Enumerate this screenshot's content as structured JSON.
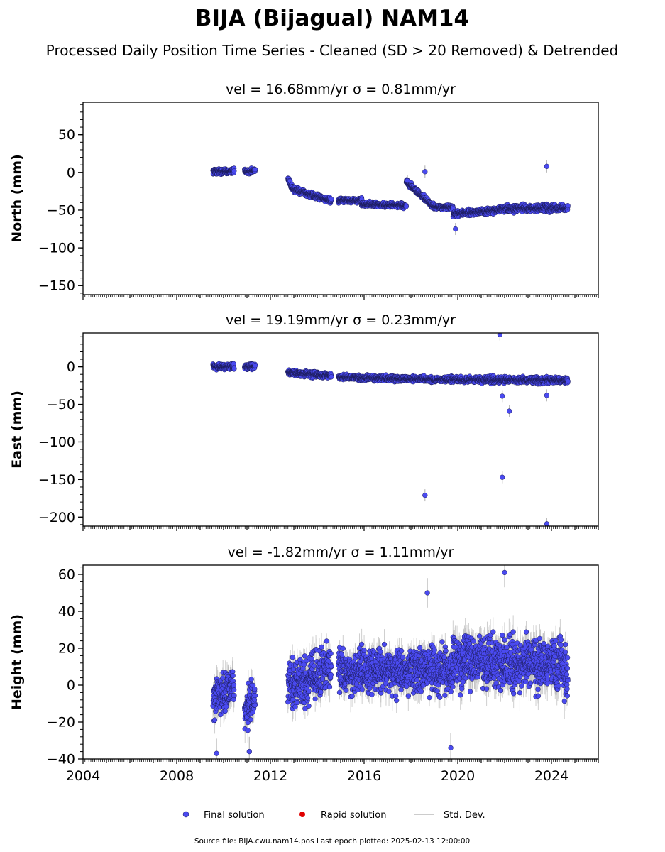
{
  "title": "BIJA (Bijagual) NAM14",
  "subtitle": "Processed Daily Position Time Series - Cleaned (SD > 20 Removed) & Detrended",
  "legend": {
    "placement": "bottom-center",
    "items": [
      {
        "label": "Final solution",
        "color": "#4a4af0",
        "marker": "circle"
      },
      {
        "label": "Rapid solution",
        "color": "#e00000",
        "marker": "circle"
      },
      {
        "label": "Std. Dev.",
        "color": "#bbbbbb",
        "marker": "line"
      }
    ]
  },
  "footer": "Source file: BIJA.cwu.nam14.pos  Last epoch plotted: 2025-02-13 12:00:00",
  "colors": {
    "final": "#4a4af0",
    "final_edge": "#1a1a55",
    "rapid": "#e00000",
    "stddev": "#bbbbbb"
  },
  "chart_data": [
    {
      "type": "scatter",
      "title": "vel = 16.68mm/yr   σ = 0.81mm/yr",
      "ylabel": "North (mm)",
      "xlim": [
        2004.0,
        2026.0
      ],
      "ylim": [
        -162,
        93
      ],
      "yticks": [
        50,
        0,
        -50,
        -100,
        -150
      ],
      "ytick_labels": [
        "50",
        "0",
        "−50",
        "−100",
        "−150"
      ],
      "grid": false,
      "series": [
        {
          "name": "Final solution",
          "segments": [
            {
              "x0": 2009.55,
              "x1": 2010.45,
              "y0": 1,
              "y1": 2,
              "spread": 3,
              "sd": 2
            },
            {
              "x0": 2010.9,
              "x1": 2011.35,
              "y0": 1,
              "y1": 3,
              "spread": 3,
              "sd": 2
            },
            {
              "x0": 2012.75,
              "x1": 2012.95,
              "y0": -8,
              "y1": -22,
              "spread": 3,
              "sd": 2
            },
            {
              "x0": 2012.95,
              "x1": 2014.6,
              "y0": -22,
              "y1": -38,
              "spread": 3,
              "sd": 2
            },
            {
              "x0": 2014.9,
              "x1": 2015.9,
              "y0": -37,
              "y1": -37,
              "spread": 2.5,
              "sd": 2
            },
            {
              "x0": 2015.9,
              "x1": 2017.8,
              "y0": -42,
              "y1": -44,
              "spread": 2.5,
              "sd": 2
            },
            {
              "x0": 2017.8,
              "x1": 2019.0,
              "y0": -12,
              "y1": -46,
              "spread": 3,
              "sd": 2
            },
            {
              "x0": 2019.0,
              "x1": 2019.8,
              "y0": -46,
              "y1": -46,
              "spread": 2.5,
              "sd": 2
            },
            {
              "x0": 2019.8,
              "x1": 2021.8,
              "y0": -55,
              "y1": -50,
              "spread": 3,
              "sd": 2
            },
            {
              "x0": 2021.8,
              "x1": 2024.7,
              "y0": -48,
              "y1": -47,
              "spread": 4,
              "sd": 3
            }
          ],
          "outliers": [
            [
              2018.6,
              1
            ],
            [
              2023.8,
              8
            ],
            [
              2019.9,
              -75
            ],
            [
              2017.85,
              -11
            ]
          ]
        }
      ]
    },
    {
      "type": "scatter",
      "title": "vel = 19.19mm/yr   σ = 0.23mm/yr",
      "ylabel": "East (mm)",
      "xlim": [
        2004.0,
        2026.0
      ],
      "ylim": [
        -212,
        45
      ],
      "yticks": [
        0,
        -50,
        -100,
        -150,
        -200
      ],
      "ytick_labels": [
        "0",
        "−50",
        "−100",
        "−150",
        "−200"
      ],
      "grid": false,
      "series": [
        {
          "name": "Final solution",
          "segments": [
            {
              "x0": 2009.55,
              "x1": 2010.45,
              "y0": 0,
              "y1": 0,
              "spread": 3,
              "sd": 2
            },
            {
              "x0": 2010.9,
              "x1": 2011.35,
              "y0": 0,
              "y1": 1,
              "spread": 3,
              "sd": 2
            },
            {
              "x0": 2012.75,
              "x1": 2014.6,
              "y0": -8,
              "y1": -12,
              "spread": 3,
              "sd": 2
            },
            {
              "x0": 2014.9,
              "x1": 2019.6,
              "y0": -14,
              "y1": -17,
              "spread": 3,
              "sd": 2
            },
            {
              "x0": 2019.6,
              "x1": 2024.7,
              "y0": -17,
              "y1": -18,
              "spread": 3.5,
              "sd": 3
            }
          ],
          "outliers": [
            [
              2018.6,
              -171
            ],
            [
              2021.9,
              -147
            ],
            [
              2022.2,
              -59
            ],
            [
              2021.9,
              -39
            ],
            [
              2023.8,
              -38
            ],
            [
              2023.8,
              -209
            ],
            [
              2021.8,
              43
            ]
          ]
        }
      ]
    },
    {
      "type": "scatter",
      "title": "vel = -1.82mm/yr   σ = 1.11mm/yr",
      "ylabel": "Height (mm)",
      "xlabel": "",
      "xlim": [
        2004.0,
        2026.0
      ],
      "ylim": [
        -40,
        65
      ],
      "yticks": [
        60,
        40,
        20,
        0,
        -20,
        -40
      ],
      "ytick_labels": [
        "60",
        "40",
        "20",
        "0",
        "−20",
        "−40"
      ],
      "xticks": [
        2004,
        2008,
        2012,
        2016,
        2020,
        2024
      ],
      "xtick_labels": [
        "2004",
        "2008",
        "2012",
        "2016",
        "2020",
        "2024"
      ],
      "grid": false,
      "series": [
        {
          "name": "Final solution",
          "segments": [
            {
              "x0": 2009.55,
              "x1": 2010.45,
              "y0": -8,
              "y1": 0,
              "spread": 10,
              "sd": 6
            },
            {
              "x0": 2010.9,
              "x1": 2011.35,
              "y0": -15,
              "y1": -5,
              "spread": 9,
              "sd": 6
            },
            {
              "x0": 2012.75,
              "x1": 2014.6,
              "y0": 0,
              "y1": 8,
              "spread": 11,
              "sd": 6
            },
            {
              "x0": 2014.9,
              "x1": 2019.8,
              "y0": 8,
              "y1": 8,
              "spread": 10,
              "sd": 6
            },
            {
              "x0": 2019.8,
              "x1": 2024.7,
              "y0": 14,
              "y1": 10,
              "spread": 12,
              "sd": 7
            }
          ],
          "outliers": [
            [
              2022.0,
              61
            ],
            [
              2018.7,
              50
            ],
            [
              2019.7,
              -34
            ],
            [
              2009.7,
              -37
            ],
            [
              2011.1,
              -36
            ]
          ]
        }
      ]
    }
  ]
}
